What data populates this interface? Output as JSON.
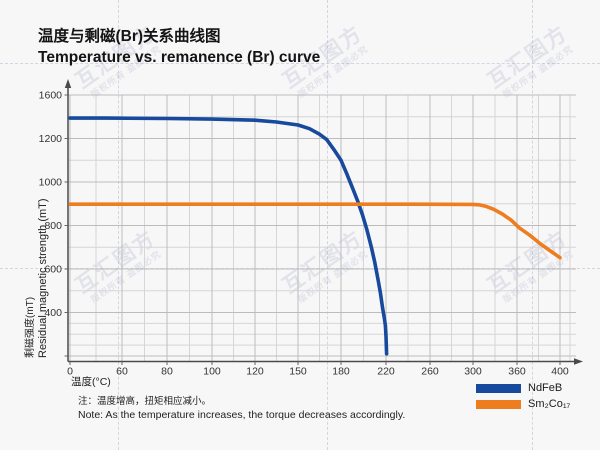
{
  "title": {
    "zh": "温度与剩磁(Br)关系曲线图",
    "en": "Temperature vs. remanence (Br) curve"
  },
  "axes": {
    "x_label": "温度(°C)",
    "y_label_zh": "剩磁强度(mT)",
    "y_label_en": "Residual magnetic strength (mT)"
  },
  "chart_data": {
    "type": "line",
    "title": "Temperature vs. remanence (Br) curve",
    "xlabel": "温度(°C)",
    "ylabel": "剩磁强度(mT) Residual magnetic strength (mT)",
    "x_ticks": [
      0,
      60,
      80,
      100,
      120,
      150,
      180,
      220,
      260,
      300,
      360,
      400
    ],
    "y_ticks": [
      0,
      400,
      600,
      800,
      1000,
      1200,
      1600
    ],
    "grid": true,
    "legend_position": "bottom-right",
    "series": [
      {
        "name": "NdFeB",
        "color": "#17499c",
        "points": [
          [
            0,
            1388
          ],
          [
            40,
            1388
          ],
          [
            80,
            1384
          ],
          [
            100,
            1378
          ],
          [
            120,
            1368
          ],
          [
            135,
            1352
          ],
          [
            150,
            1324
          ],
          [
            158,
            1290
          ],
          [
            165,
            1240
          ],
          [
            170,
            1195
          ],
          [
            175,
            1150
          ],
          [
            180,
            1100
          ],
          [
            185,
            1040
          ],
          [
            190,
            975
          ],
          [
            195,
            910
          ],
          [
            199,
            850
          ],
          [
            203,
            780
          ],
          [
            207,
            700
          ],
          [
            210,
            630
          ],
          [
            213,
            550
          ],
          [
            215,
            490
          ],
          [
            217,
            420
          ],
          [
            218.5,
            350
          ],
          [
            219.5,
            280
          ],
          [
            220,
            180
          ],
          [
            220.5,
            20
          ]
        ]
      },
      {
        "name": "Sm₂Co₁₇",
        "color": "#ee7d1f",
        "points": [
          [
            0,
            898
          ],
          [
            50,
            898
          ],
          [
            100,
            898
          ],
          [
            150,
            898
          ],
          [
            200,
            898
          ],
          [
            250,
            898
          ],
          [
            300,
            897
          ],
          [
            308,
            895
          ],
          [
            318,
            888
          ],
          [
            328,
            875
          ],
          [
            340,
            853
          ],
          [
            352,
            825
          ],
          [
            362,
            790
          ],
          [
            372,
            755
          ],
          [
            382,
            715
          ],
          [
            391,
            683
          ],
          [
            400,
            652
          ]
        ]
      }
    ]
  },
  "legend": {
    "items": [
      {
        "label": "NdFeB",
        "color": "#17499c"
      },
      {
        "label": "Sm₂Co₁₇",
        "color": "#ee7d1f"
      }
    ]
  },
  "note": {
    "zh": "注：温度增高，扭矩相应减小。",
    "en": "Note: As the temperature increases, the torque decreases accordingly."
  },
  "watermark": {
    "brand": "互汇图方",
    "small": "版权所有 盗图必究"
  },
  "colors": {
    "background": "#f7f7f8",
    "grid_major": "#bcbcbc",
    "grid_minor": "#d6d6d6",
    "axis": "#4a4a4a",
    "tick_text": "#333333"
  }
}
